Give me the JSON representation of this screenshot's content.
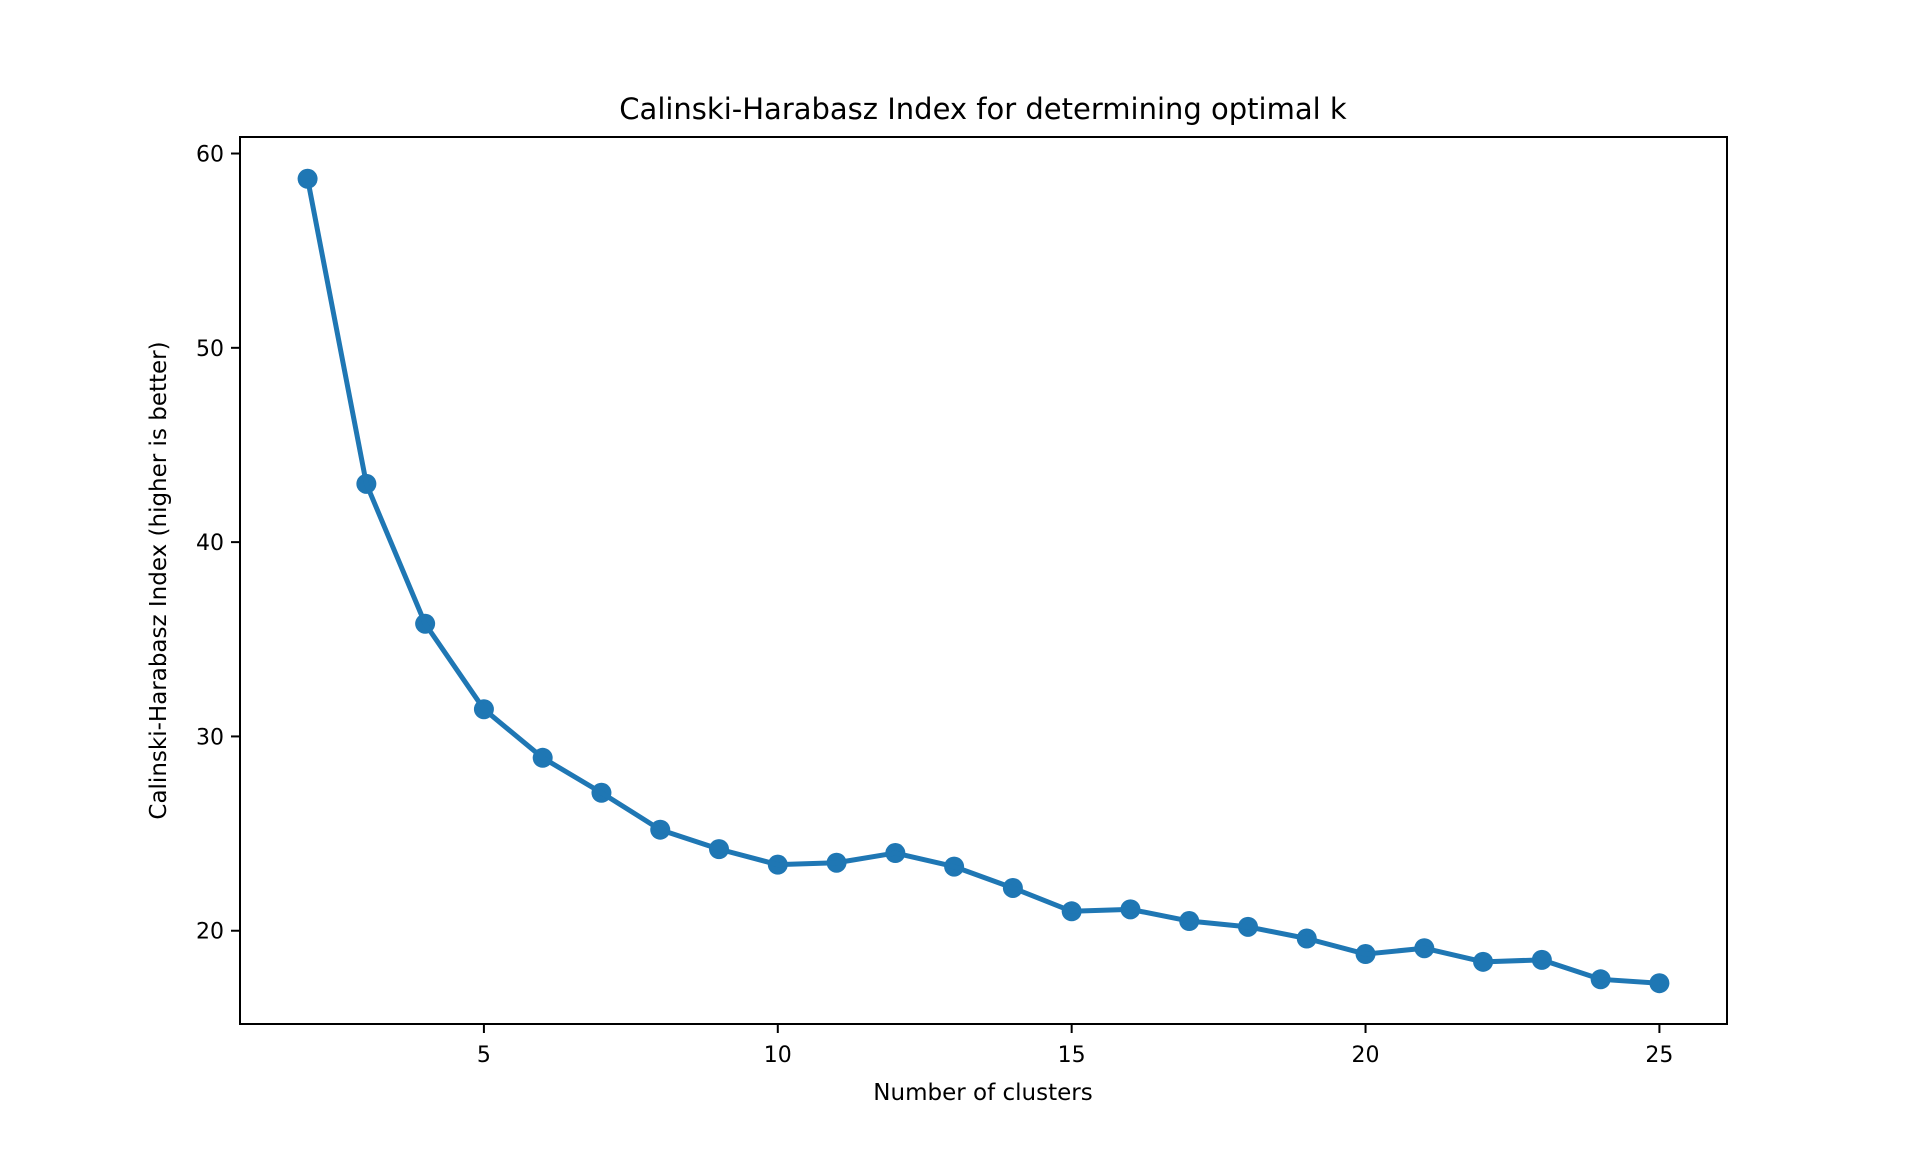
{
  "figure": {
    "background_color": "#ffffff",
    "text_color": "#000000"
  },
  "chart_data": {
    "type": "line",
    "title": "Calinski-Harabasz Index for determining optimal k",
    "xlabel": "Number of clusters",
    "ylabel": "Calinski-Harabasz Index (higher is better)",
    "x": [
      2,
      3,
      4,
      5,
      6,
      7,
      8,
      9,
      10,
      11,
      12,
      13,
      14,
      15,
      16,
      17,
      18,
      19,
      20,
      21,
      22,
      23,
      24,
      25
    ],
    "y": [
      58.7,
      43.0,
      35.8,
      31.4,
      28.9,
      27.1,
      25.2,
      24.2,
      23.4,
      23.5,
      24.0,
      23.3,
      22.2,
      21.0,
      21.1,
      20.5,
      20.2,
      19.6,
      18.8,
      19.1,
      18.4,
      18.5,
      17.5,
      17.3
    ],
    "xticks": [
      5,
      10,
      15,
      20,
      25
    ],
    "yticks": [
      20,
      30,
      40,
      50,
      60
    ],
    "xlim": [
      0.85,
      26.15
    ],
    "ylim": [
      15.2,
      60.85
    ],
    "line_color": "#1f77b4",
    "marker": "circle",
    "marker_color": "#1f77b4",
    "grid": false,
    "legend": null
  }
}
